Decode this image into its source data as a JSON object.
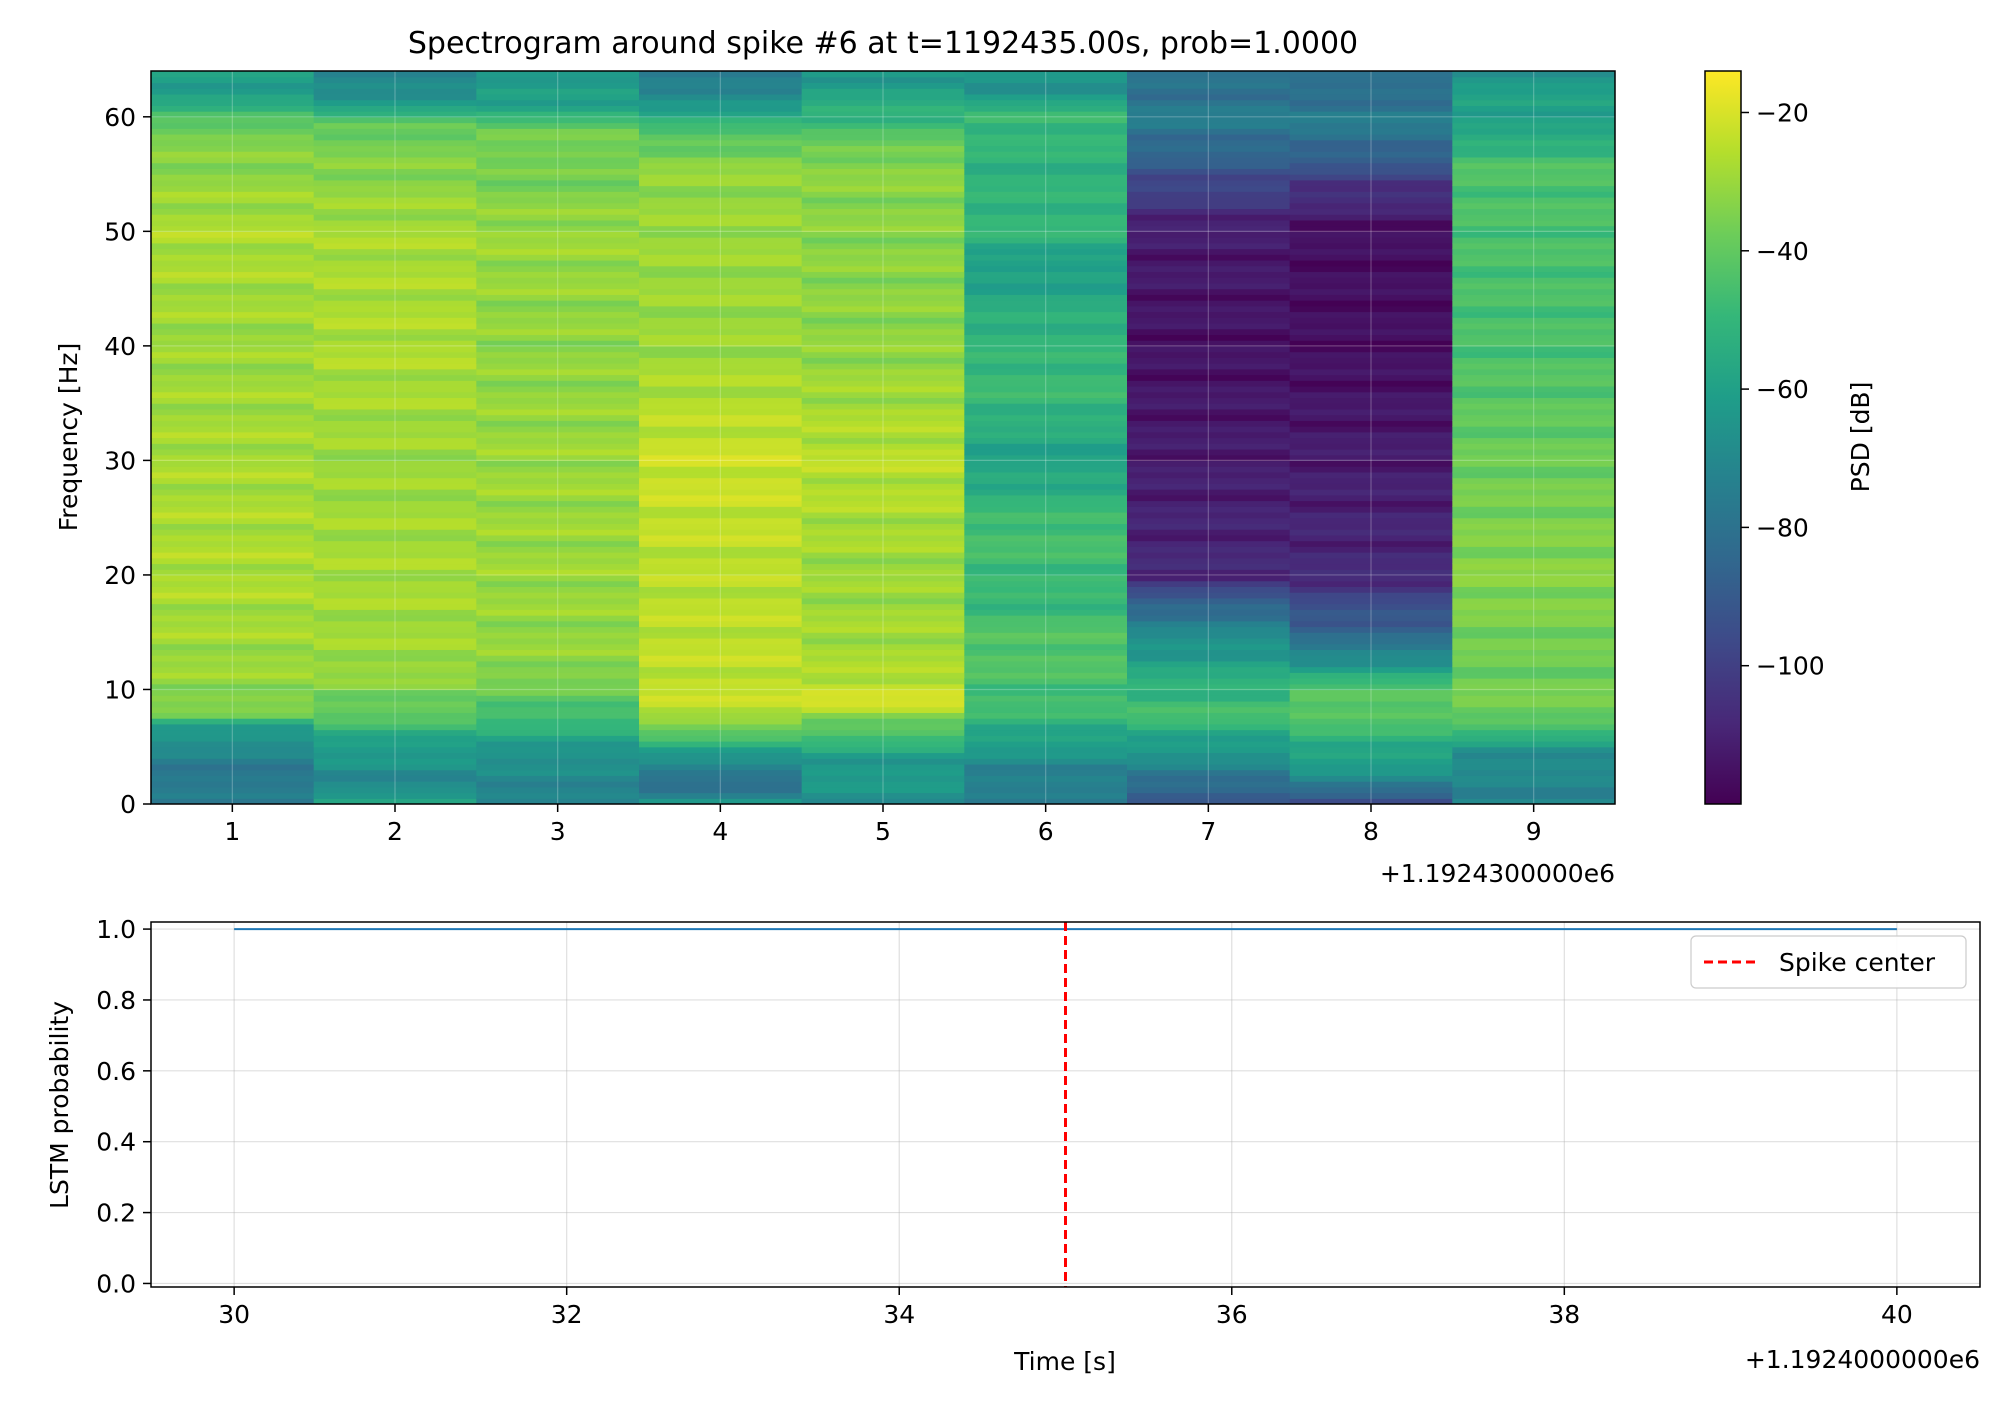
{
  "figure_title": "Spectrogram around spike #6 at t=1192435.00s, prob=1.0000",
  "chart_data": [
    {
      "type": "heatmap",
      "ylabel": "Frequency [Hz]",
      "xlabel": "",
      "x_offset_label": "+1.1924300000e6",
      "xlim": [
        0.5,
        9.5
      ],
      "ylim": [
        0,
        64
      ],
      "x_ticks": [
        1,
        2,
        3,
        4,
        5,
        6,
        7,
        8,
        9
      ],
      "y_ticks": [
        0,
        10,
        20,
        30,
        40,
        50,
        60
      ],
      "grid": true,
      "time_centers": [
        1,
        2,
        3,
        4,
        5,
        6,
        7,
        8,
        9
      ],
      "freq_profiles": [
        {
          "center": 1,
          "points": [
            [
              0,
              -78
            ],
            [
              4,
              -75
            ],
            [
              7,
              -58
            ],
            [
              8,
              -35
            ],
            [
              12,
              -30
            ],
            [
              20,
              -27
            ],
            [
              30,
              -28
            ],
            [
              40,
              -30
            ],
            [
              50,
              -27
            ],
            [
              56,
              -33
            ],
            [
              59,
              -36
            ],
            [
              61,
              -55
            ],
            [
              63,
              -62
            ],
            [
              64,
              -62
            ]
          ]
        },
        {
          "center": 2,
          "points": [
            [
              0,
              -60
            ],
            [
              2,
              -70
            ],
            [
              5,
              -62
            ],
            [
              8,
              -40
            ],
            [
              12,
              -30
            ],
            [
              20,
              -28
            ],
            [
              30,
              -30
            ],
            [
              40,
              -27
            ],
            [
              50,
              -28
            ],
            [
              56,
              -34
            ],
            [
              59,
              -38
            ],
            [
              61,
              -60
            ],
            [
              63,
              -72
            ],
            [
              64,
              -72
            ]
          ]
        },
        {
          "center": 3,
          "points": [
            [
              0,
              -72
            ],
            [
              4,
              -68
            ],
            [
              8,
              -45
            ],
            [
              12,
              -32
            ],
            [
              20,
              -30
            ],
            [
              30,
              -30
            ],
            [
              40,
              -32
            ],
            [
              50,
              -30
            ],
            [
              56,
              -38
            ],
            [
              58,
              -33
            ],
            [
              61,
              -58
            ],
            [
              63,
              -64
            ],
            [
              64,
              -64
            ]
          ]
        },
        {
          "center": 4,
          "points": [
            [
              0,
              -62
            ],
            [
              2,
              -85
            ],
            [
              5,
              -55
            ],
            [
              8,
              -24
            ],
            [
              12,
              -24
            ],
            [
              20,
              -25
            ],
            [
              30,
              -22
            ],
            [
              40,
              -30
            ],
            [
              50,
              -30
            ],
            [
              56,
              -32
            ],
            [
              60,
              -52
            ],
            [
              62,
              -74
            ],
            [
              64,
              -72
            ]
          ]
        },
        {
          "center": 5,
          "points": [
            [
              0,
              -66
            ],
            [
              4,
              -62
            ],
            [
              8,
              -30
            ],
            [
              9,
              -20
            ],
            [
              12,
              -28
            ],
            [
              20,
              -30
            ],
            [
              30,
              -25
            ],
            [
              40,
              -32
            ],
            [
              50,
              -33
            ],
            [
              56,
              -33
            ],
            [
              59,
              -45
            ],
            [
              61,
              -55
            ],
            [
              63,
              -62
            ],
            [
              64,
              -62
            ]
          ]
        },
        {
          "center": 6,
          "points": [
            [
              0,
              -78
            ],
            [
              3,
              -72
            ],
            [
              8,
              -48
            ],
            [
              14,
              -42
            ],
            [
              18,
              -50
            ],
            [
              24,
              -45
            ],
            [
              30,
              -60
            ],
            [
              36,
              -48
            ],
            [
              42,
              -52
            ],
            [
              47,
              -62
            ],
            [
              50,
              -50
            ],
            [
              56,
              -52
            ],
            [
              60,
              -48
            ],
            [
              62,
              -64
            ],
            [
              64,
              -66
            ]
          ]
        },
        {
          "center": 7,
          "points": [
            [
              0,
              -95
            ],
            [
              2,
              -80
            ],
            [
              8,
              -45
            ],
            [
              12,
              -58
            ],
            [
              16,
              -75
            ],
            [
              20,
              -108
            ],
            [
              30,
              -112
            ],
            [
              40,
              -115
            ],
            [
              50,
              -112
            ],
            [
              54,
              -98
            ],
            [
              57,
              -85
            ],
            [
              60,
              -75
            ],
            [
              62,
              -80
            ],
            [
              64,
              -80
            ]
          ]
        },
        {
          "center": 8,
          "points": [
            [
              0,
              -100
            ],
            [
              2,
              -70
            ],
            [
              6,
              -50
            ],
            [
              9,
              -38
            ],
            [
              11,
              -52
            ],
            [
              14,
              -80
            ],
            [
              20,
              -108
            ],
            [
              30,
              -112
            ],
            [
              40,
              -116
            ],
            [
              50,
              -116
            ],
            [
              54,
              -104
            ],
            [
              57,
              -85
            ],
            [
              60,
              -75
            ],
            [
              62,
              -82
            ],
            [
              64,
              -82
            ]
          ]
        },
        {
          "center": 9,
          "points": [
            [
              0,
              -72
            ],
            [
              4,
              -70
            ],
            [
              8,
              -36
            ],
            [
              12,
              -38
            ],
            [
              20,
              -33
            ],
            [
              30,
              -38
            ],
            [
              40,
              -45
            ],
            [
              50,
              -45
            ],
            [
              56,
              -44
            ],
            [
              59,
              -60
            ],
            [
              61,
              -58
            ],
            [
              63,
              -64
            ],
            [
              64,
              -64
            ]
          ]
        }
      ]
    },
    {
      "type": "colorbar",
      "label": "PSD [dB]",
      "colormap": "viridis",
      "range": [
        -120,
        -14
      ],
      "ticks": [
        -20,
        -40,
        -60,
        -80,
        -100
      ]
    },
    {
      "type": "line",
      "xlabel": "Time [s]",
      "ylabel": "LSTM probability",
      "x_offset_label": "+1.1924000000e6",
      "xlim": [
        29.5,
        40.5
      ],
      "ylim": [
        -0.01,
        1.02
      ],
      "x_ticks": [
        30,
        32,
        34,
        36,
        38,
        40
      ],
      "y_ticks": [
        0.0,
        0.2,
        0.4,
        0.6,
        0.8,
        1.0
      ],
      "grid": true,
      "series": [
        {
          "color": "#1f77b4",
          "x": [
            30,
            40
          ],
          "values": [
            1.0,
            1.0
          ]
        }
      ],
      "vline": {
        "x": 35,
        "name": "Spike center",
        "color": "#ff0000",
        "style": "dashed"
      },
      "legend_position": "top-right"
    }
  ]
}
